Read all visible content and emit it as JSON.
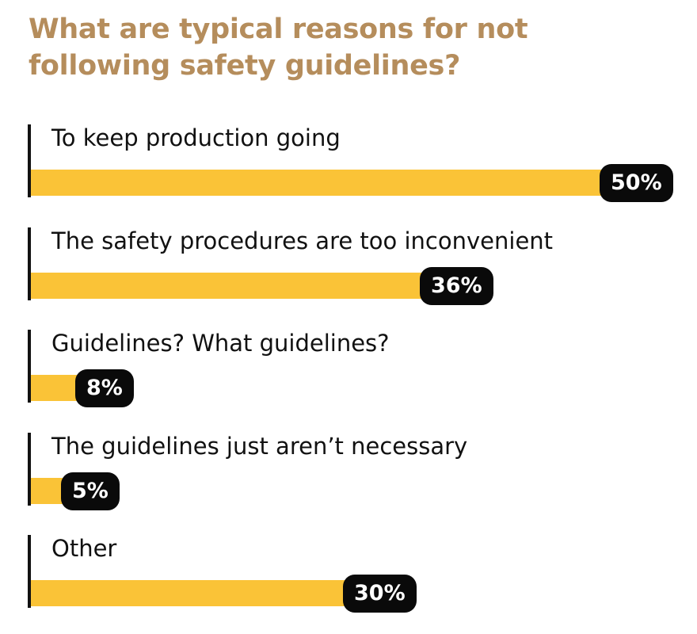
{
  "colors": {
    "title": "#b58d5c",
    "bar": "#fac337",
    "badge": "#0a0a0a",
    "badge_text": "#ffffff",
    "text": "#111111"
  },
  "chart_data": {
    "type": "bar",
    "orientation": "horizontal",
    "title": "What are typical reasons for not following safety guidelines?",
    "categories": [
      "To keep production going",
      "The safety procedures are too inconvenient",
      "Guidelines? What guidelines?",
      "The guidelines just aren’t necessary",
      "Other"
    ],
    "values": [
      50,
      36,
      8,
      5,
      30
    ],
    "value_labels": [
      "50%",
      "36%",
      "8%",
      "5%",
      "30%"
    ],
    "unit": "%",
    "xlim": [
      0,
      50
    ],
    "grid": false,
    "legend": "none"
  }
}
